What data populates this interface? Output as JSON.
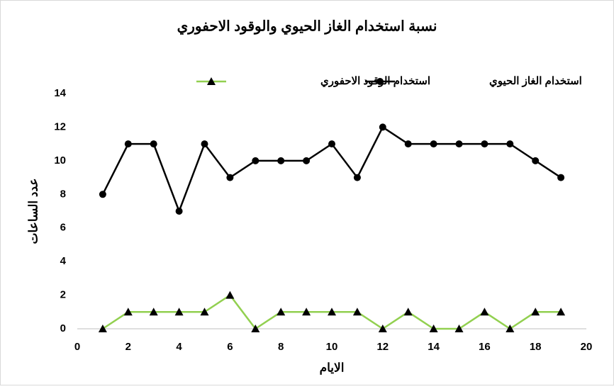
{
  "chart_data": {
    "type": "line",
    "title": "نسبة استخدام الغاز الحيوي والوقود الاحفوري",
    "x_label": "الايام",
    "y_label": "عدد الساعات",
    "x": [
      1,
      2,
      3,
      4,
      5,
      6,
      7,
      8,
      9,
      10,
      11,
      12,
      13,
      14,
      15,
      16,
      17,
      18,
      19
    ],
    "series": [
      {
        "name": "استخدام الغاز الحيوي",
        "color": "#000000",
        "marker": "circle",
        "values": [
          8,
          11,
          11,
          7,
          11,
          9,
          10,
          10,
          10,
          11,
          9,
          12,
          11,
          11,
          11,
          11,
          11,
          10,
          9
        ]
      },
      {
        "name": "استخدام الوقود الاحفوري",
        "color": "#92d050",
        "marker": "triangle",
        "values": [
          0,
          1,
          1,
          1,
          1,
          2,
          0,
          1,
          1,
          1,
          1,
          0,
          1,
          0,
          0,
          1,
          0,
          1,
          1
        ]
      }
    ],
    "xlim": [
      0,
      20
    ],
    "xticks": [
      0,
      2,
      4,
      6,
      8,
      10,
      12,
      14,
      16,
      18,
      20
    ],
    "ylim": [
      0,
      14
    ],
    "yticks": [
      0,
      2,
      4,
      6,
      8,
      10,
      12,
      14
    ],
    "grid": false,
    "legend": "top"
  }
}
